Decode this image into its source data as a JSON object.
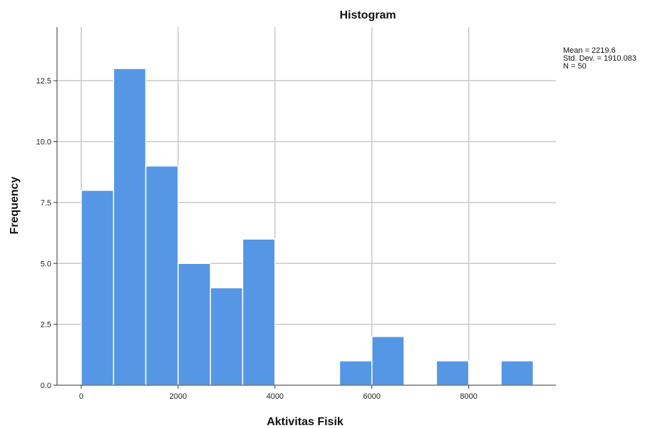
{
  "chart_data": {
    "type": "bar",
    "title": "Histogram",
    "xlabel": "Aktivitas Fisik",
    "ylabel": "Frequency",
    "bins": [
      {
        "start": 0,
        "end": 667,
        "count": 8
      },
      {
        "start": 667,
        "end": 1333,
        "count": 13
      },
      {
        "start": 1333,
        "end": 2000,
        "count": 9
      },
      {
        "start": 2000,
        "end": 2667,
        "count": 5
      },
      {
        "start": 2667,
        "end": 3333,
        "count": 4
      },
      {
        "start": 3333,
        "end": 4000,
        "count": 6
      },
      {
        "start": 4000,
        "end": 4667,
        "count": 0
      },
      {
        "start": 4667,
        "end": 5333,
        "count": 0
      },
      {
        "start": 5333,
        "end": 6000,
        "count": 1
      },
      {
        "start": 6000,
        "end": 6667,
        "count": 2
      },
      {
        "start": 6667,
        "end": 7333,
        "count": 0
      },
      {
        "start": 7333,
        "end": 8000,
        "count": 1
      },
      {
        "start": 8000,
        "end": 8667,
        "count": 0
      },
      {
        "start": 8667,
        "end": 9333,
        "count": 1
      }
    ],
    "xlim": [
      -500,
      9800
    ],
    "ylim": [
      0,
      14.7
    ],
    "xticks": [
      0,
      2000,
      4000,
      6000,
      8000
    ],
    "xtick_labels": [
      "0",
      "2000",
      "4000",
      "6000",
      "8000"
    ],
    "yticks": [
      0,
      2.5,
      5.0,
      7.5,
      10.0,
      12.5
    ],
    "ytick_labels": [
      "0.0",
      "2.5",
      "5.0",
      "7.5",
      "10.0",
      "12.5"
    ],
    "grid": true,
    "bar_color": "#5597e4",
    "stats": {
      "mean": "Mean = 2219.6",
      "std_dev": "Std. Dev. = 1910.083",
      "n": "N = 50"
    }
  }
}
